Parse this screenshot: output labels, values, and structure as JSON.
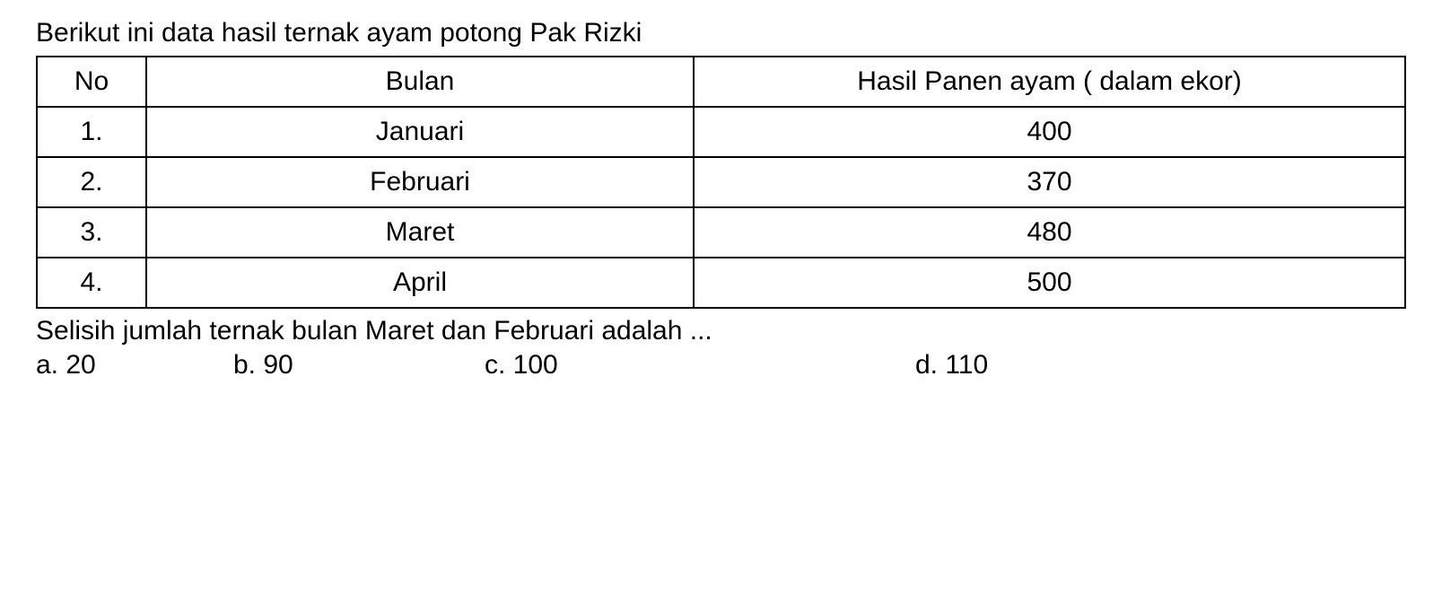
{
  "question": {
    "intro": "Berikut ini data hasil ternak ayam potong Pak Rizki",
    "followup": "Selisih jumlah ternak bulan Maret dan Februari adalah ..."
  },
  "table": {
    "headers": {
      "no": "No",
      "bulan": "Bulan",
      "hasil": "Hasil Panen ayam ( dalam ekor)"
    },
    "rows": [
      {
        "no": "1.",
        "bulan": "Januari",
        "hasil": "400"
      },
      {
        "no": "2.",
        "bulan": "Februari",
        "hasil": "370"
      },
      {
        "no": "3.",
        "bulan": "Maret",
        "hasil": "480"
      },
      {
        "no": "4.",
        "bulan": "April",
        "hasil": "500"
      }
    ]
  },
  "options": {
    "a": "a.  20",
    "b": "b. 90",
    "c": "c. 100",
    "d": "d. 110"
  },
  "styling": {
    "background_color": "#ffffff",
    "text_color": "#000000",
    "border_color": "#000000",
    "font_family": "Arial",
    "base_fontsize": 30,
    "border_width": 2
  }
}
